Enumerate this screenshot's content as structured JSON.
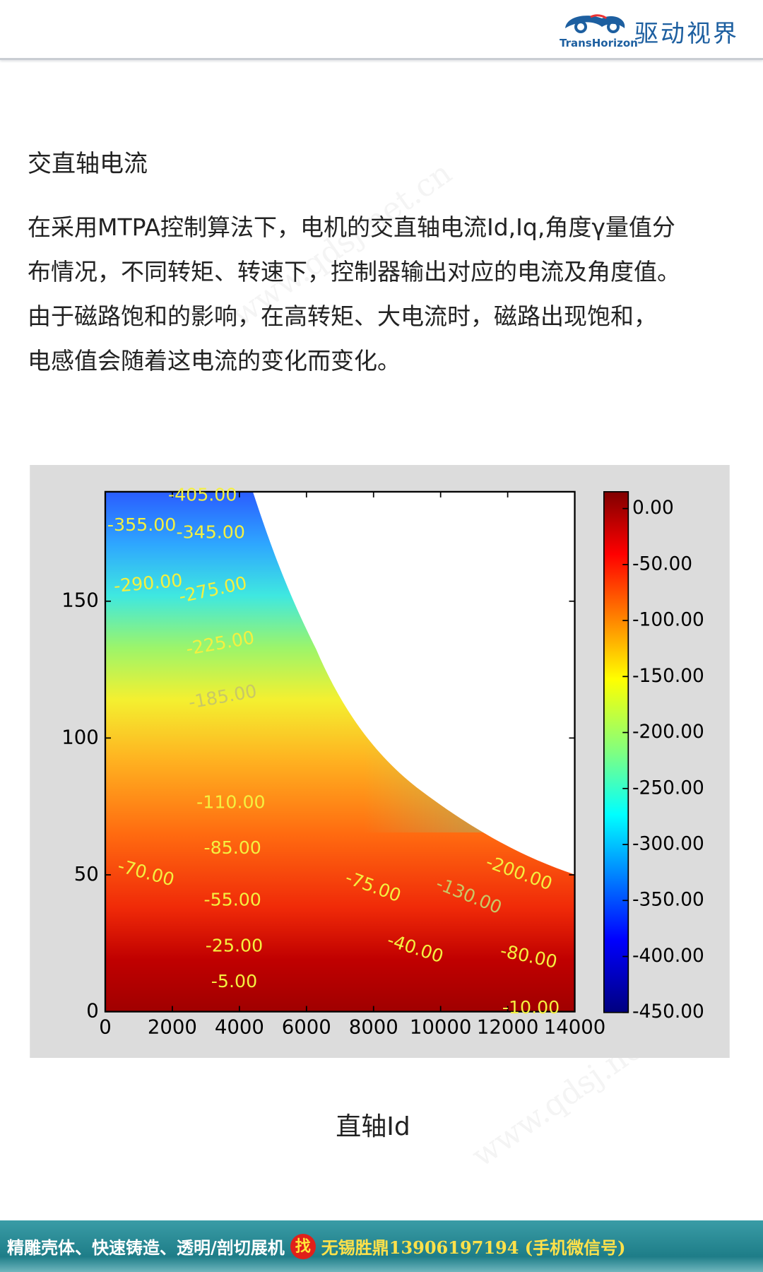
{
  "header": {
    "logo_en": "TransHorizon",
    "logo_cn": "驱动视界"
  },
  "heading": "交直轴电流",
  "paragraph_lines": [
    "在采用MTPA控制算法下，电机的交直轴电流Id,Iq,角度γ量值分",
    "布情况，不同转矩、转速下，控制器输出对应的电流及角度值。",
    "由于磁路饱和的影响，在高转矩、大电流时，磁路出现饱和，",
    "电感值会随着这电流的变化而变化。"
  ],
  "watermarks": [
    "www.qdsj.net.cn",
    "www.qdsj.net.cn"
  ],
  "chart_data": {
    "type": "contour",
    "xlim": [
      0,
      14000
    ],
    "ylim": [
      0,
      190
    ],
    "xticks": [
      0,
      2000,
      4000,
      6000,
      8000,
      10000,
      12000,
      14000
    ],
    "yticks": [
      0,
      50,
      100,
      150
    ],
    "clim": [
      -450,
      15
    ],
    "cticks": [
      {
        "value": 0,
        "label": "0.00"
      },
      {
        "value": -50,
        "label": "-50.00"
      },
      {
        "value": -100,
        "label": "-100.00"
      },
      {
        "value": -150,
        "label": "-150.00"
      },
      {
        "value": -200,
        "label": "-200.00"
      },
      {
        "value": -250,
        "label": "-250.00"
      },
      {
        "value": -300,
        "label": "-300.00"
      },
      {
        "value": -350,
        "label": "-350.00"
      },
      {
        "value": -400,
        "label": "-400.00"
      },
      {
        "value": -450,
        "label": "-450.00"
      }
    ],
    "contour_labels": [
      {
        "value": -405,
        "label": "-405.00"
      },
      {
        "value": -355,
        "label": "-355.00"
      },
      {
        "value": -345,
        "label": "-345.00"
      },
      {
        "value": -290,
        "label": "-290.00"
      },
      {
        "value": -275,
        "label": "-275.00"
      },
      {
        "value": -225,
        "label": "-225.00"
      },
      {
        "value": -185,
        "label": "-185.00"
      },
      {
        "value": -110,
        "label": "-110.00"
      },
      {
        "value": -85,
        "label": "-85.00"
      },
      {
        "value": -70,
        "label": "-70.00"
      },
      {
        "value": -55,
        "label": "-55.00"
      },
      {
        "value": -25,
        "label": "-25.00"
      },
      {
        "value": -5,
        "label": "-5.00"
      },
      {
        "value": -75,
        "label": "-75.00"
      },
      {
        "value": -40,
        "label": "-40.00"
      },
      {
        "value": -80,
        "label": "-80.00"
      },
      {
        "value": -10,
        "label": "-10.00"
      },
      {
        "value": -200,
        "label": "-200.00"
      },
      {
        "value": -130,
        "label": "-130.00"
      }
    ]
  },
  "caption": "直轴Id",
  "footer": {
    "left": "精雕壳体、快速铸造、透明/剖切展机",
    "badge": "找",
    "right": "无锡胜鼎13906197194 (手机微信号)"
  }
}
